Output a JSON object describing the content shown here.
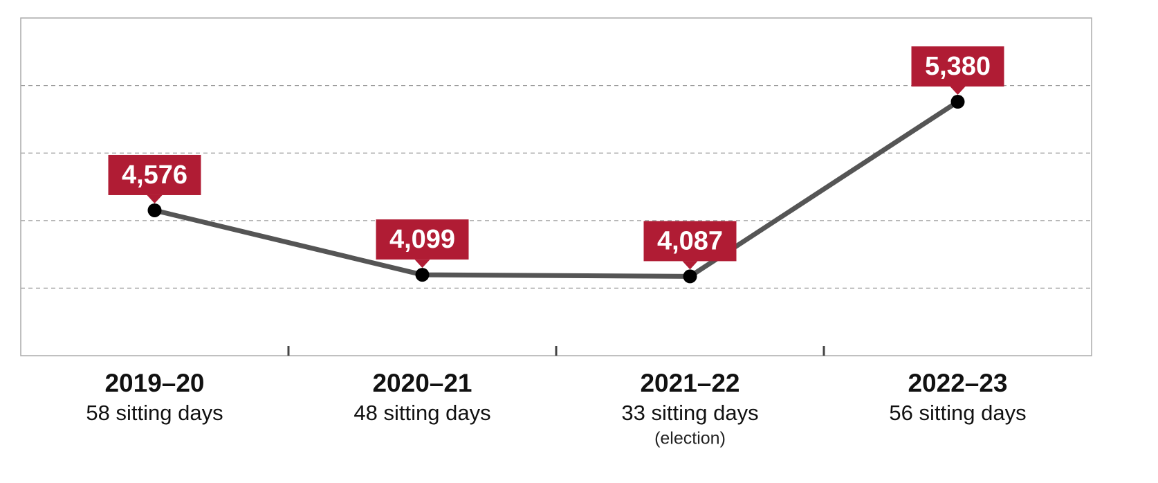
{
  "chart_data": {
    "type": "line",
    "categories": [
      "2019–20",
      "2020–21",
      "2021–22",
      "2022–23"
    ],
    "category_subtitles": [
      "58 sitting days",
      "48 sitting days",
      "33 sitting days",
      "56 sitting days"
    ],
    "category_notes": [
      null,
      null,
      "(election)",
      null
    ],
    "series": [
      {
        "color": "#555555",
        "values": [
          4576,
          4099,
          4087,
          5380
        ],
        "value_labels": [
          "4,576",
          "4,099",
          "4,087",
          "5,380"
        ]
      }
    ],
    "label_color": "#b01c34",
    "ylim": [
      3500,
      6000
    ],
    "yticks": [
      4000,
      4500,
      5000,
      5500
    ],
    "grid": true
  }
}
